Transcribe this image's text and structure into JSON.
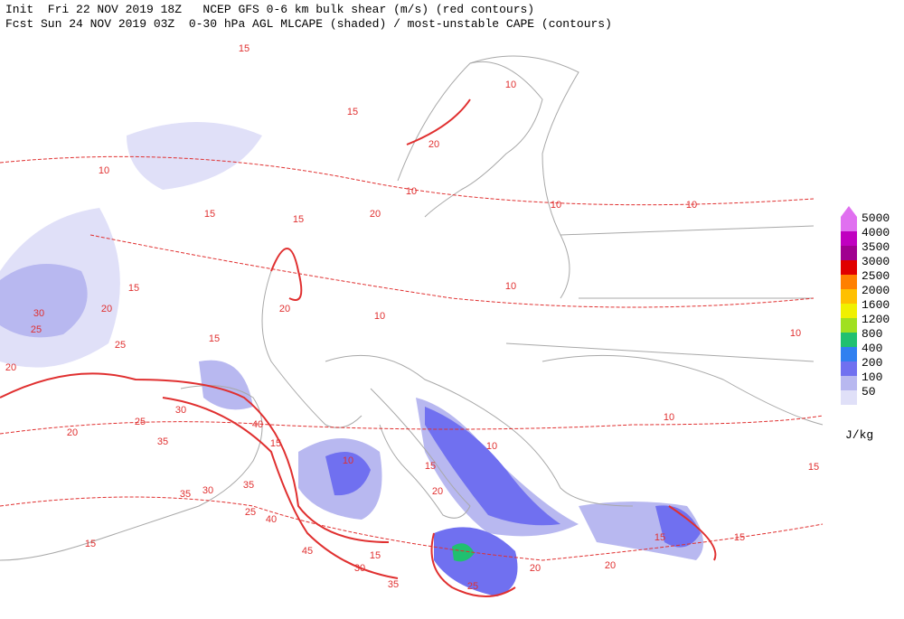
{
  "header": {
    "line1": "Init  Fri 22 NOV 2019 18Z   NCEP GFS 0-6 km bulk shear (m/s) (red contours)",
    "line2": "Fcst Sun 24 NOV 2019 03Z  0-30 hPa AGL MLCAPE (shaded) / most-unstable CAPE (contours)"
  },
  "legend": {
    "levels": [
      5000,
      4000,
      3500,
      3000,
      2500,
      2000,
      1600,
      1200,
      800,
      400,
      200,
      100,
      50
    ],
    "colors": [
      "#e070f0",
      "#c000c0",
      "#a00090",
      "#e00000",
      "#ff8000",
      "#ffc000",
      "#f0f000",
      "#a0e020",
      "#20c070",
      "#3080f0",
      "#7070f0",
      "#b8b8f0",
      "#e0e0f8"
    ],
    "unit": "J/kg"
  },
  "contour_labels": [
    15,
    10,
    15,
    20,
    10,
    15,
    10,
    20,
    15,
    10,
    10,
    15,
    20,
    30,
    25,
    25,
    20,
    10,
    10,
    20,
    15,
    10,
    10,
    30,
    25,
    20,
    35,
    40,
    15,
    10,
    10,
    15,
    20,
    35,
    30,
    35,
    40,
    25,
    45,
    30,
    35,
    15,
    25,
    20,
    20,
    15,
    15,
    15,
    15
  ]
}
